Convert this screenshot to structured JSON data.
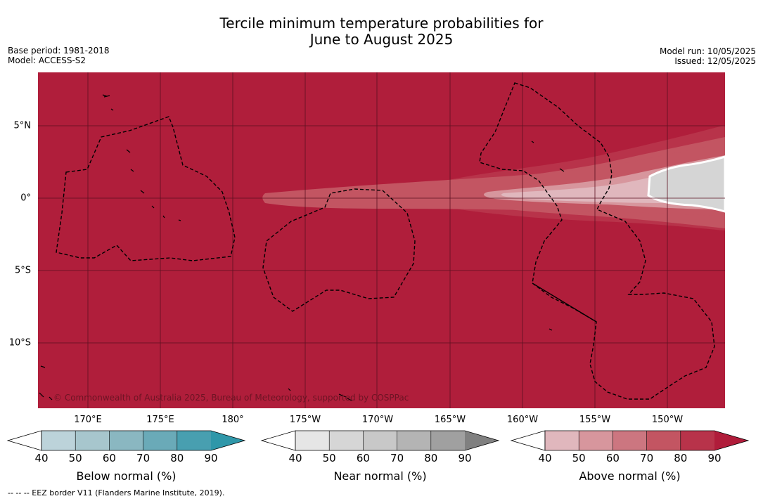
{
  "title": {
    "line1": "Tercile minimum temperature probabilities for",
    "line2": "June to August 2025"
  },
  "meta": {
    "base_period": "Base period: 1981-2018",
    "model": "Model: ACCESS-S2",
    "model_run": "Model run: 10/05/2025",
    "issued": "Issued: 12/05/2025"
  },
  "map": {
    "background_color": "#b01e3b",
    "grid_color": "#5a1020",
    "longitude_labels": [
      "170°E",
      "175°E",
      "180°",
      "175°W",
      "170°W",
      "165°W",
      "160°W",
      "155°W",
      "150°W"
    ],
    "latitude_labels": [
      "5°N",
      "0°",
      "5°S",
      "10°S"
    ],
    "credit": "© Commonwealth of Australia 2025, Bureau of Meteorology, supported by COSPPac"
  },
  "colorbars": [
    {
      "label": "Below normal (%)",
      "ticks": [
        "40",
        "50",
        "60",
        "70",
        "80",
        "90"
      ],
      "colors": [
        "#bcd3da",
        "#a7c6cd",
        "#8ab7c1",
        "#6aaab8",
        "#489fb0",
        "#2f97a9"
      ]
    },
    {
      "label": "Near normal (%)",
      "ticks": [
        "40",
        "50",
        "60",
        "70",
        "80",
        "90"
      ],
      "colors": [
        "#e6e6e6",
        "#d6d6d6",
        "#c8c8c8",
        "#b4b4b4",
        "#a0a0a0",
        "#808080"
      ]
    },
    {
      "label": "Above normal (%)",
      "ticks": [
        "40",
        "50",
        "60",
        "70",
        "80",
        "90"
      ],
      "colors": [
        "#e0b7bd",
        "#d7969d",
        "#cc7680",
        "#c35562",
        "#b8334a",
        "#b01c3a"
      ]
    }
  ],
  "footnote": "--  --  -- EEZ border V11 (Flanders Marine Institute, 2019)."
}
